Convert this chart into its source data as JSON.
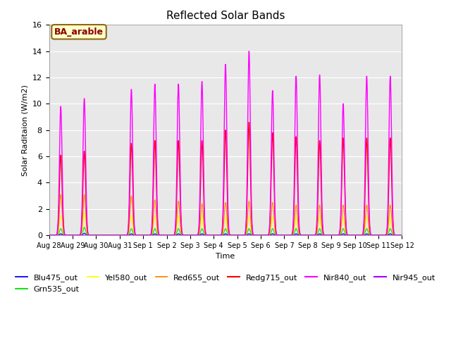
{
  "title": "Reflected Solar Bands",
  "ylabel": "Solar Raditaion (W/m2)",
  "xlabel": "Time",
  "ylim": [
    0,
    16
  ],
  "bg_color": "#e8e8e8",
  "annotation_text": "BA_arable",
  "annotation_facecolor": "#ffffcc",
  "annotation_edgecolor": "#8B6914",
  "annotation_textcolor": "#8B0000",
  "series": {
    "Blu475_out": {
      "color": "#0000ff",
      "lw": 0.8
    },
    "Grn535_out": {
      "color": "#00dd00",
      "lw": 0.8
    },
    "Yel580_out": {
      "color": "#ffff00",
      "lw": 0.8
    },
    "Red655_out": {
      "color": "#ff8800",
      "lw": 0.8
    },
    "Redg715_out": {
      "color": "#ff0000",
      "lw": 1.0
    },
    "Nir840_out": {
      "color": "#ff00ff",
      "lw": 1.0
    },
    "Nir945_out": {
      "color": "#aa00ff",
      "lw": 1.0
    }
  },
  "day_peaks": {
    "Blu475_out": [
      0.12,
      0.16,
      0.0,
      0.12,
      0.12,
      0.12,
      0.12,
      0.12,
      0.12,
      0.12,
      0.12,
      0.12,
      0.12,
      0.12,
      0.12
    ],
    "Grn535_out": [
      0.5,
      0.6,
      0.0,
      0.5,
      0.5,
      0.5,
      0.5,
      0.5,
      0.5,
      0.5,
      0.5,
      0.5,
      0.5,
      0.5,
      0.5
    ],
    "Yel580_out": [
      1.5,
      1.7,
      0.0,
      1.5,
      1.5,
      1.5,
      1.5,
      1.4,
      1.4,
      1.4,
      1.4,
      1.4,
      1.4,
      1.4,
      1.4
    ],
    "Red655_out": [
      3.1,
      3.1,
      0.0,
      3.0,
      2.7,
      2.6,
      2.4,
      2.5,
      2.6,
      2.5,
      2.3,
      2.3,
      2.3,
      2.3,
      2.3
    ],
    "Redg715_out": [
      6.1,
      6.4,
      0.0,
      7.0,
      7.2,
      7.2,
      7.2,
      8.0,
      8.6,
      7.8,
      7.5,
      7.2,
      7.4,
      7.4,
      7.4
    ],
    "Nir840_out": [
      9.8,
      10.4,
      0.0,
      11.1,
      11.5,
      11.5,
      11.7,
      13.0,
      14.0,
      11.0,
      12.1,
      12.2,
      10.0,
      12.1,
      12.1
    ],
    "Nir945_out": [
      0.0,
      0.0,
      0.0,
      0.0,
      0.0,
      0.0,
      0.0,
      0.0,
      0.0,
      0.0,
      0.0,
      0.0,
      0.0,
      0.0,
      0.0
    ]
  },
  "n_days": 15,
  "pts_per_day": 240,
  "sigma": 0.055
}
